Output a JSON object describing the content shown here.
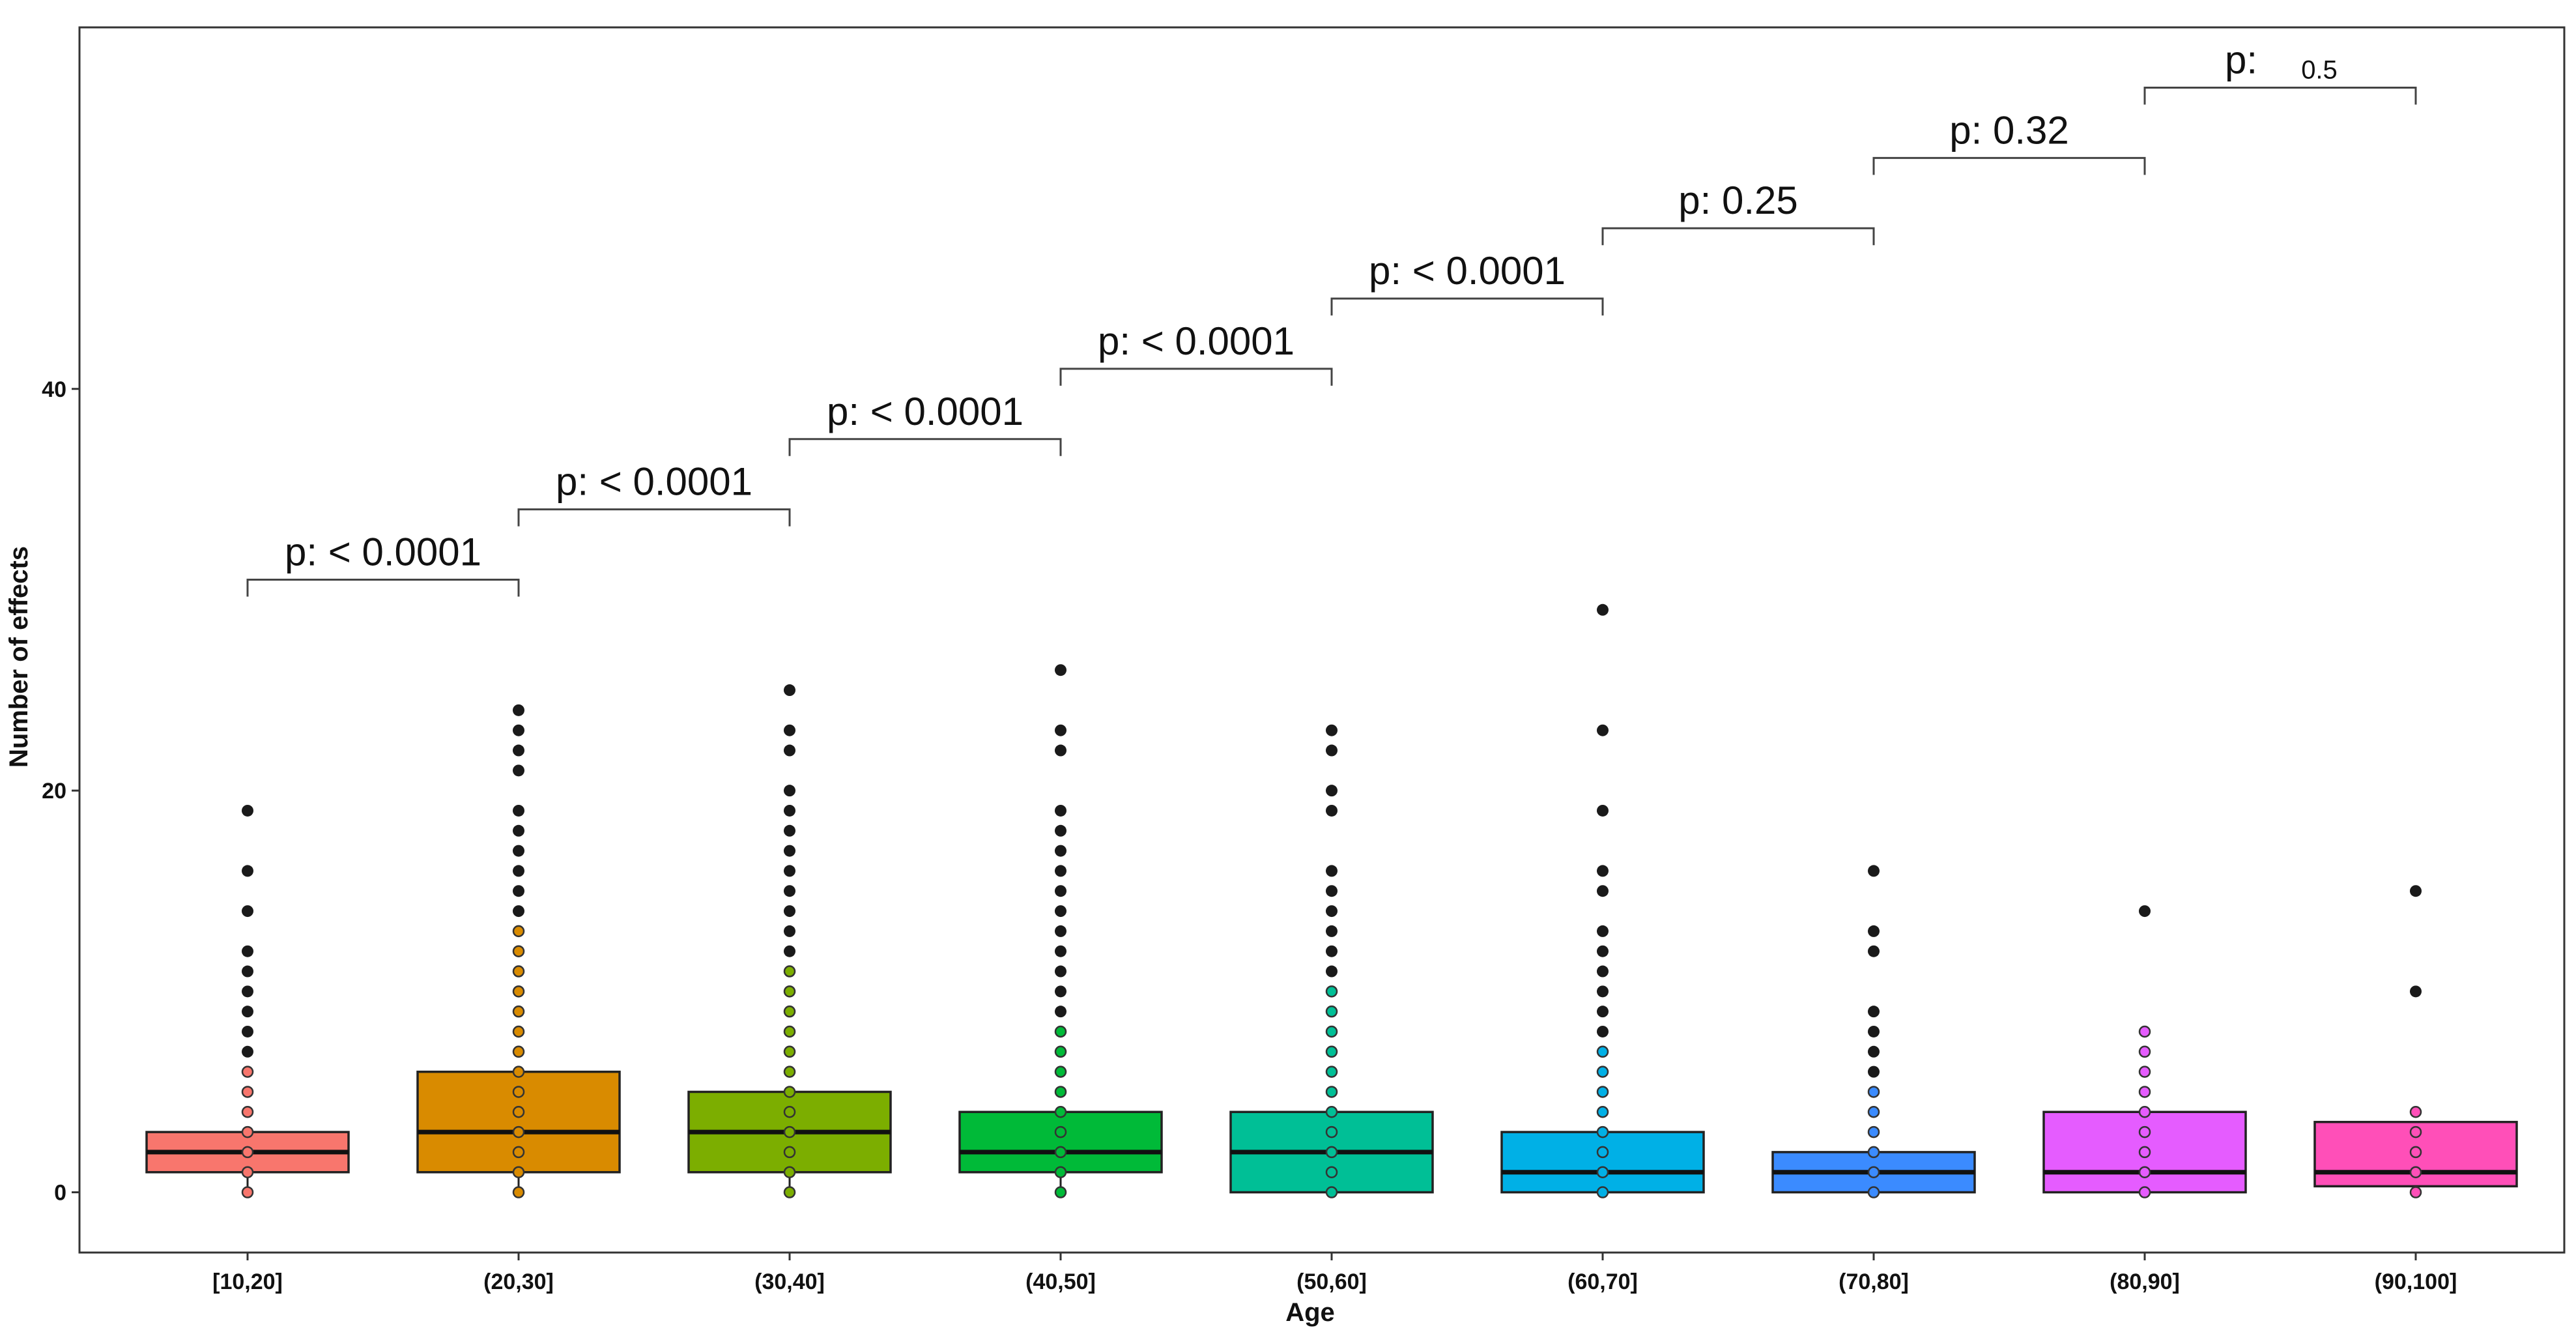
{
  "chart_data": {
    "type": "boxplot",
    "xlabel": "Age",
    "ylabel": "Number of effects",
    "ylim": [
      -3,
      58
    ],
    "yticks": [
      0,
      20,
      40
    ],
    "grid": false,
    "categories": [
      "[10,20]",
      "(20,30]",
      "(30,40]",
      "(40,50]",
      "(50,60]",
      "(60,70]",
      "(70,80]",
      "(80,90]",
      "(90,100]"
    ],
    "colors": [
      "#F8766D",
      "#D98B00",
      "#7CAE00",
      "#00BA38",
      "#00BF96",
      "#00B0E6",
      "#3B8BFF",
      "#E55CFF",
      "#FF4FB8"
    ],
    "boxes": [
      {
        "q1": 1,
        "median": 2,
        "q3": 3
      },
      {
        "q1": 1,
        "median": 3,
        "q3": 6
      },
      {
        "q1": 1,
        "median": 3,
        "q3": 5
      },
      {
        "q1": 1,
        "median": 2,
        "q3": 4
      },
      {
        "q1": 0,
        "median": 2,
        "q3": 4
      },
      {
        "q1": 0,
        "median": 1,
        "q3": 3
      },
      {
        "q1": 0,
        "median": 1,
        "q3": 2
      },
      {
        "q1": 0,
        "median": 1,
        "q3": 4
      },
      {
        "q1": 0.3,
        "median": 1,
        "q3": 3.5
      }
    ],
    "jitter_points": [
      [
        0,
        1,
        2,
        3,
        4,
        5,
        6
      ],
      [
        0,
        1,
        2,
        3,
        4,
        5,
        6,
        7,
        8,
        9,
        10,
        11,
        12,
        13
      ],
      [
        0,
        1,
        2,
        3,
        4,
        5,
        6,
        7,
        8,
        9,
        10,
        11
      ],
      [
        0,
        1,
        2,
        3,
        4,
        5,
        6,
        7,
        8
      ],
      [
        0,
        1,
        2,
        3,
        4,
        5,
        6,
        7,
        8,
        9,
        10
      ],
      [
        0,
        1,
        2,
        3,
        4,
        5,
        6,
        7
      ],
      [
        0,
        1,
        2,
        3,
        4,
        5
      ],
      [
        0,
        1,
        2,
        3,
        4,
        5,
        6,
        7,
        8
      ],
      [
        0,
        1,
        2,
        3,
        4
      ]
    ],
    "outliers": [
      [
        7,
        8,
        9,
        10,
        11,
        12,
        14,
        16,
        19
      ],
      [
        14,
        15,
        16,
        17,
        18,
        19,
        21,
        22,
        23,
        24
      ],
      [
        12,
        13,
        14,
        15,
        16,
        17,
        18,
        19,
        20,
        22,
        23,
        25
      ],
      [
        9,
        10,
        11,
        12,
        13,
        14,
        15,
        16,
        17,
        18,
        19,
        22,
        23,
        26
      ],
      [
        11,
        12,
        13,
        14,
        15,
        16,
        19,
        20,
        22,
        23
      ],
      [
        8,
        9,
        10,
        11,
        12,
        13,
        15,
        16,
        19,
        23,
        29
      ],
      [
        6,
        7,
        8,
        9,
        12,
        13,
        16
      ],
      [
        14
      ],
      [
        10,
        15
      ]
    ],
    "comparisons": [
      {
        "from": 0,
        "to": 1,
        "y": 30.5,
        "label": "p: < 0.0001"
      },
      {
        "from": 1,
        "to": 2,
        "y": 34,
        "label": "p: < 0.0001"
      },
      {
        "from": 2,
        "to": 3,
        "y": 37.5,
        "label": "p: < 0.0001"
      },
      {
        "from": 3,
        "to": 4,
        "y": 41,
        "label": "p: < 0.0001"
      },
      {
        "from": 4,
        "to": 5,
        "y": 44.5,
        "label": "p: < 0.0001"
      },
      {
        "from": 5,
        "to": 6,
        "y": 48,
        "label": "p: 0.25"
      },
      {
        "from": 6,
        "to": 7,
        "y": 51.5,
        "label": "p: 0.32"
      },
      {
        "from": 7,
        "to": 8,
        "y": 55,
        "label": "p:",
        "label_extra": "0.5"
      }
    ]
  }
}
